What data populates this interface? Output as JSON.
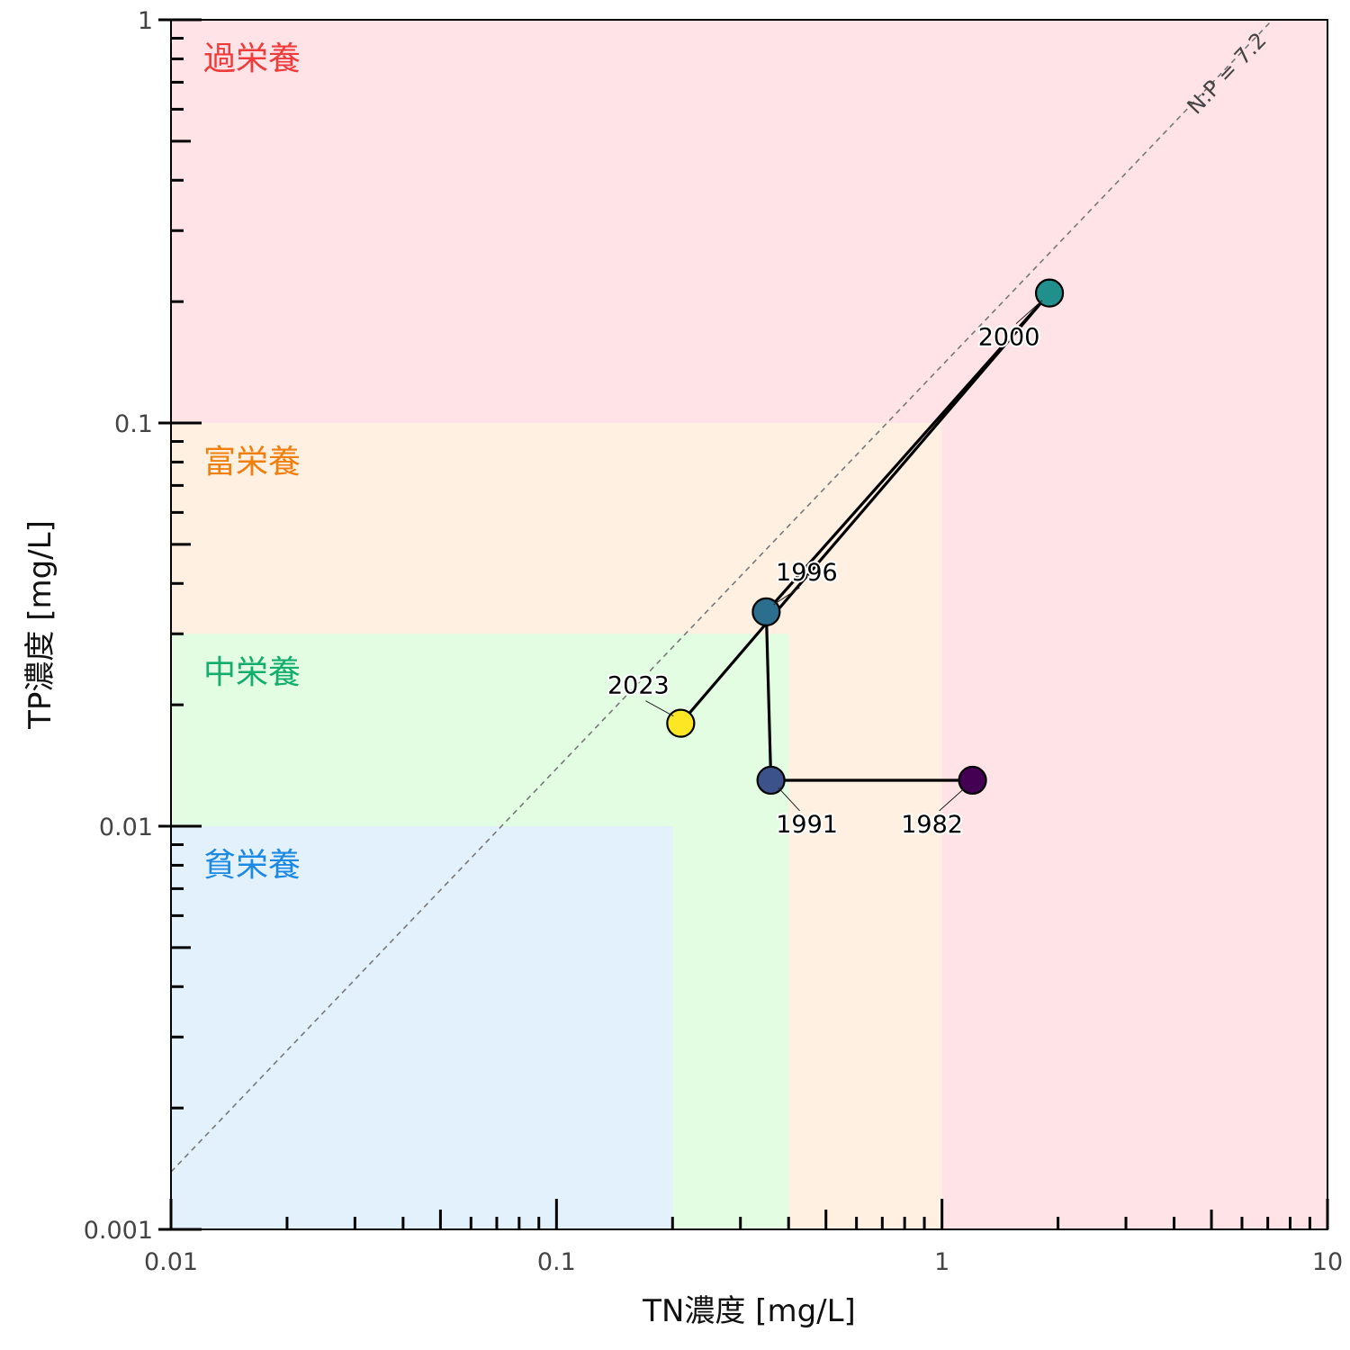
{
  "chart_data": {
    "type": "scatter",
    "title": "",
    "xlabel": "TN濃度 [mg/L]",
    "ylabel": "TP濃度 [mg/L]",
    "x_scale": "log",
    "y_scale": "log",
    "xlim": [
      0.01,
      10
    ],
    "ylim": [
      0.001,
      1
    ],
    "x_ticks": [
      {
        "value": 0.01,
        "label": "0.01"
      },
      {
        "value": 0.1,
        "label": "0.1"
      },
      {
        "value": 1,
        "label": "1"
      },
      {
        "value": 10,
        "label": "10"
      }
    ],
    "y_ticks": [
      {
        "value": 0.001,
        "label": "0.001"
      },
      {
        "value": 0.01,
        "label": "0.01"
      },
      {
        "value": 0.1,
        "label": "0.1"
      },
      {
        "value": 1,
        "label": "1"
      }
    ],
    "zones": [
      {
        "label": "過栄養",
        "tn_max": 10,
        "tp_max": 1,
        "fill": "#ffe3e6",
        "text_color": "#f03b3b"
      },
      {
        "label": "富栄養",
        "tn_max": 1,
        "tp_max": 0.1,
        "fill": "#fff0e2",
        "text_color": "#f07f0d"
      },
      {
        "label": "中栄養",
        "tn_max": 0.4,
        "tp_max": 0.03,
        "fill": "#e2fde2",
        "text_color": "#14ae6c"
      },
      {
        "label": "貧栄養",
        "tn_max": 0.2,
        "tp_max": 0.01,
        "fill": "#e3f1fd",
        "text_color": "#1c89e5"
      }
    ],
    "reference_line": {
      "label": "N:P = 7.2",
      "ratio": 7.2,
      "color": "#777777"
    },
    "series": [
      {
        "points": [
          {
            "year": "1982",
            "tn": 1.2,
            "tp": 0.013,
            "color": "#440154"
          },
          {
            "year": "1991",
            "tn": 0.36,
            "tp": 0.013,
            "color": "#3b528b"
          },
          {
            "year": "1996",
            "tn": 0.35,
            "tp": 0.034,
            "color": "#2c6e8e"
          },
          {
            "year": "2000",
            "tn": 1.9,
            "tp": 0.21,
            "color": "#21908d"
          },
          {
            "year": "2023",
            "tn": 0.21,
            "tp": 0.018,
            "color": "#fde725"
          }
        ]
      }
    ],
    "grid": false
  }
}
